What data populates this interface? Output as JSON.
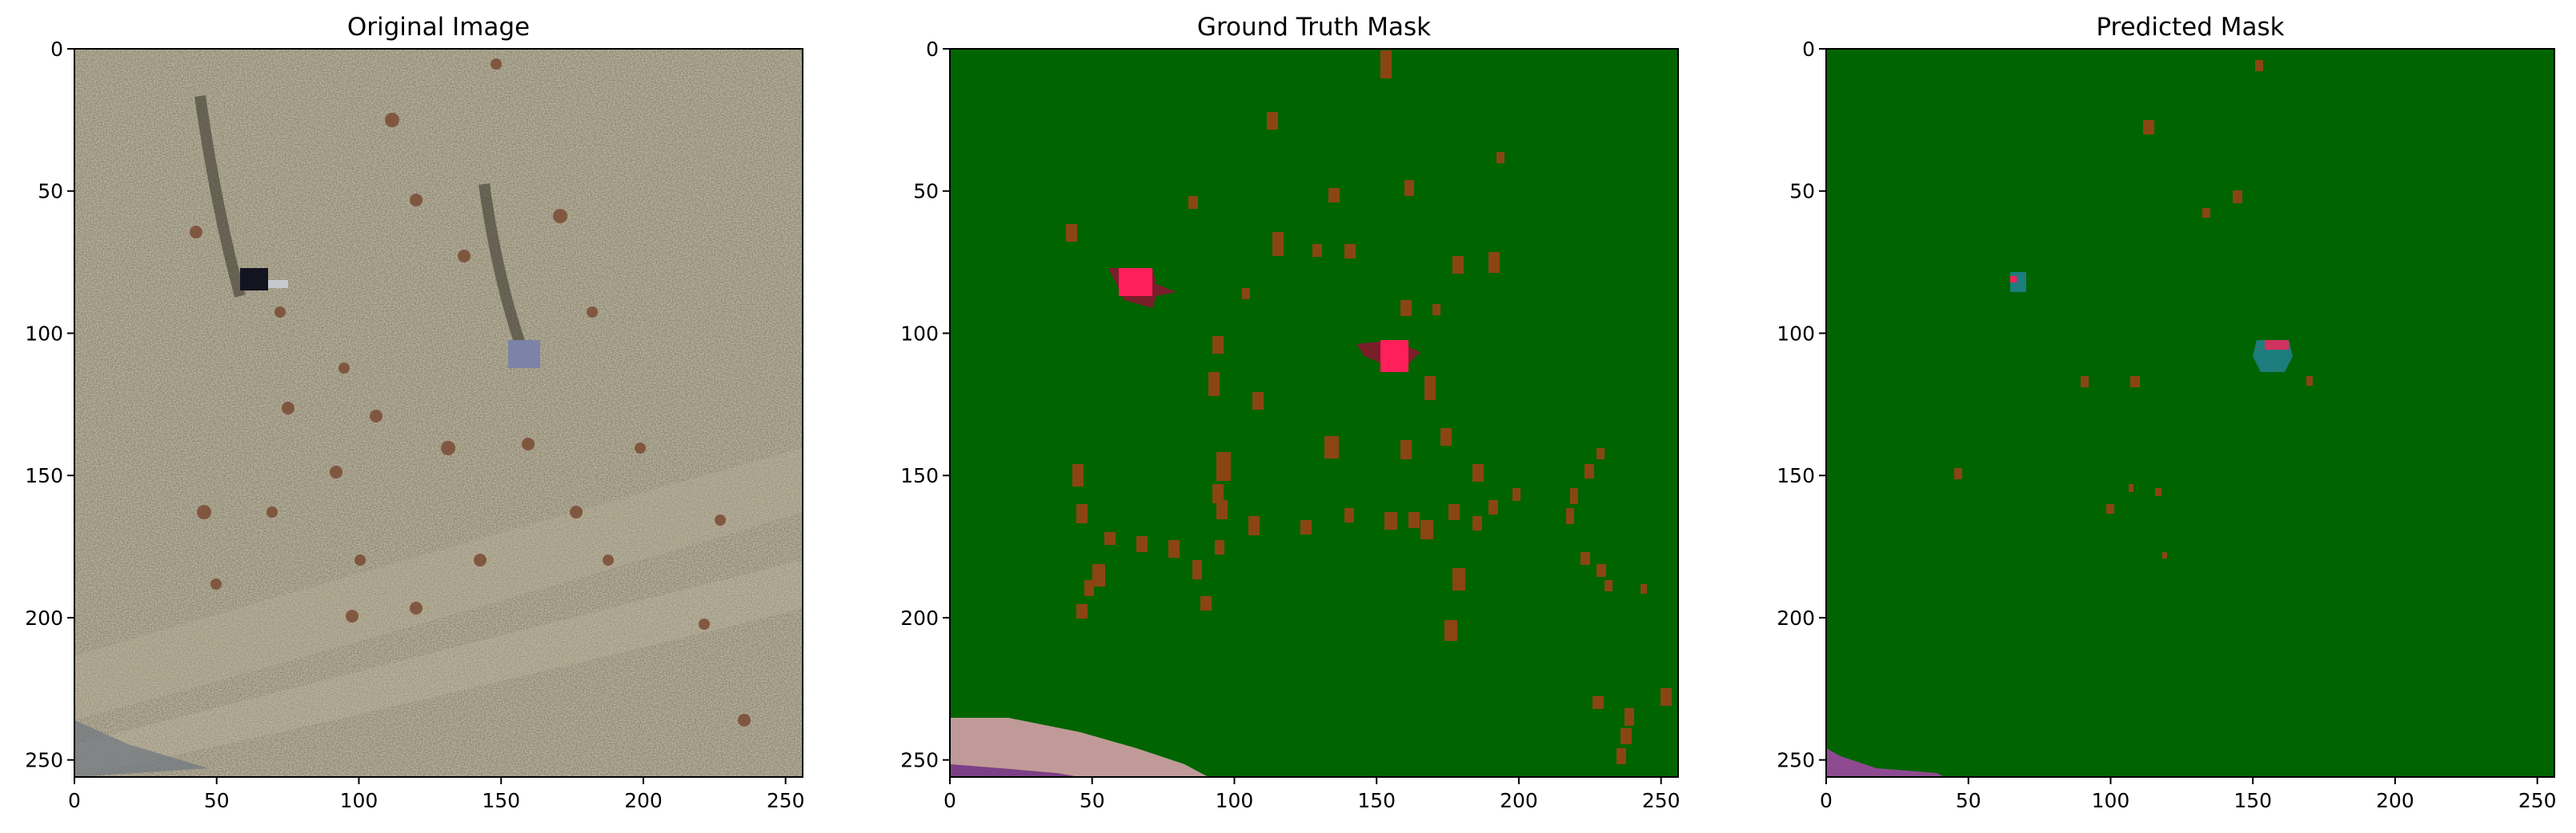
{
  "panels": [
    {
      "id": "original",
      "title": "Original Image"
    },
    {
      "id": "ground-truth",
      "title": "Ground Truth Mask"
    },
    {
      "id": "predicted",
      "title": "Predicted Mask"
    }
  ],
  "axes": {
    "x_ticks": [
      0,
      50,
      100,
      150,
      200,
      250
    ],
    "y_ticks": [
      0,
      50,
      100,
      150,
      200,
      250
    ],
    "range": [
      0,
      255
    ]
  },
  "colors": {
    "background_class": "#006400",
    "shrub_class": "#8b4513",
    "object_class": "#ff1f5a",
    "object_dark": "#7a1f2a",
    "track_class": "#c09a98",
    "track_dark": "#7c3f86",
    "pred_object": "#1d7c7c",
    "pred_track": "#8e4a91"
  }
}
